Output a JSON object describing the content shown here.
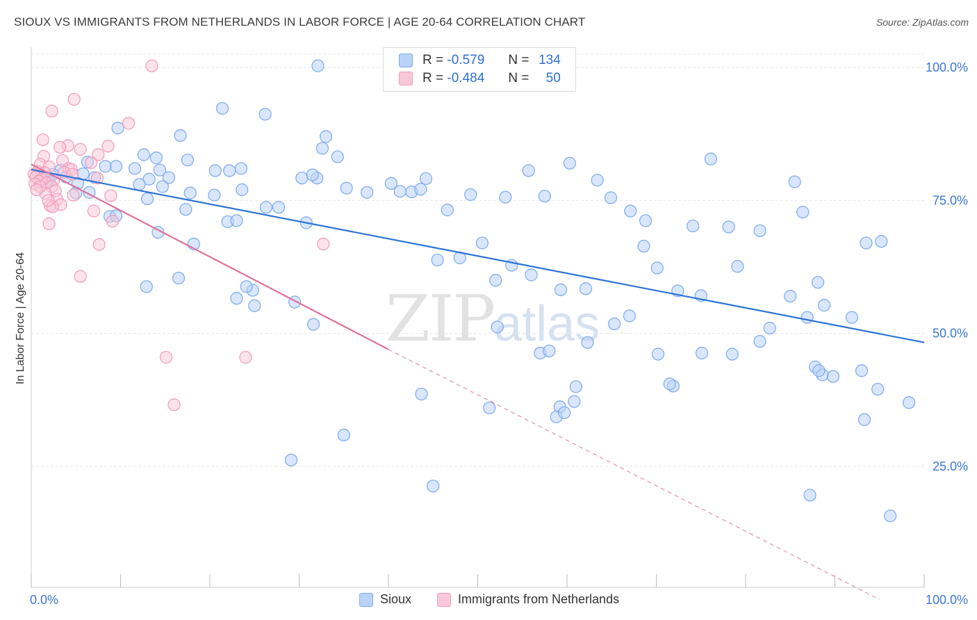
{
  "title": "SIOUX VS IMMIGRANTS FROM NETHERLANDS IN LABOR FORCE | AGE 20-64 CORRELATION CHART",
  "source": "Source: ZipAtlas.com",
  "legend_top": {
    "rows": [
      {
        "r_label": "R =",
        "r_value": "-0.579",
        "n_label": "N =",
        "n_value": "134"
      },
      {
        "r_label": "R =",
        "r_value": "-0.484",
        "n_label": "N =",
        "n_value": "50"
      }
    ]
  },
  "watermark": {
    "zip": "ZIP",
    "atlas": "atlas"
  },
  "colors": {
    "sioux": "#7aaaf0",
    "sioux_fill": "#b9d2f7",
    "sioux_line": "#2c72d8",
    "neth": "#f29ab8",
    "neth_fill": "#f9c8d8",
    "neth_line": "#e0709a",
    "axis_label": "#3b78d0",
    "grid": "#e6e6e6"
  },
  "chart_data": {
    "type": "scatter",
    "title": "SIOUX VS IMMIGRANTS FROM NETHERLANDS IN LABOR FORCE | AGE 20-64 CORRELATION CHART",
    "xlabel": "",
    "ylabel": "In Labor Force | Age 20-64",
    "xlim": [
      0,
      100
    ],
    "ylim": [
      0,
      105
    ],
    "x_tick_labels": [
      "0.0%",
      "100.0%"
    ],
    "y_ticks": [
      25,
      50,
      75,
      100
    ],
    "y_tick_labels": [
      "25.0%",
      "50.0%",
      "75.0%",
      "100.0%"
    ],
    "grid": true,
    "legend": [
      "Sioux",
      "Immigrants from Netherlands"
    ],
    "series": [
      {
        "name": "Sioux",
        "r": -0.579,
        "n": 134,
        "trend": {
          "x0": 0,
          "y0": 80.8,
          "x1": 100,
          "y1": 48.3
        },
        "points": [
          [
            32.1,
            100.3
          ],
          [
            21.4,
            92.3
          ],
          [
            26.2,
            91.2
          ],
          [
            9.7,
            88.6
          ],
          [
            16.7,
            87.2
          ],
          [
            33.0,
            87.0
          ],
          [
            32.6,
            84.8
          ],
          [
            12.6,
            83.6
          ],
          [
            14.0,
            83.0
          ],
          [
            34.3,
            83.2
          ],
          [
            17.5,
            82.6
          ],
          [
            6.3,
            82.2
          ],
          [
            8.3,
            81.4
          ],
          [
            9.5,
            81.4
          ],
          [
            11.6,
            81.0
          ],
          [
            14.4,
            80.7
          ],
          [
            20.6,
            80.6
          ],
          [
            22.2,
            80.6
          ],
          [
            23.5,
            81.0
          ],
          [
            3.3,
            80.7
          ],
          [
            5.8,
            80.0
          ],
          [
            2.4,
            79.9
          ],
          [
            1.1,
            79.6
          ],
          [
            3.9,
            79.4
          ],
          [
            7.1,
            79.3
          ],
          [
            13.2,
            79.0
          ],
          [
            15.4,
            79.3
          ],
          [
            30.3,
            79.2
          ],
          [
            32.0,
            79.2
          ],
          [
            31.5,
            79.8
          ],
          [
            44.2,
            79.1
          ],
          [
            40.3,
            78.2
          ],
          [
            5.2,
            78.2
          ],
          [
            2.0,
            78.5
          ],
          [
            1.7,
            78.3
          ],
          [
            0.9,
            78.5
          ],
          [
            12.1,
            78.0
          ],
          [
            14.7,
            77.6
          ],
          [
            17.8,
            76.4
          ],
          [
            23.6,
            77.0
          ],
          [
            35.3,
            77.3
          ],
          [
            37.6,
            76.5
          ],
          [
            41.3,
            76.7
          ],
          [
            42.6,
            76.6
          ],
          [
            43.6,
            77.1
          ],
          [
            49.2,
            76.1
          ],
          [
            53.1,
            75.6
          ],
          [
            55.7,
            80.6
          ],
          [
            60.3,
            82.0
          ],
          [
            63.4,
            78.8
          ],
          [
            20.5,
            76.0
          ],
          [
            13.0,
            75.3
          ],
          [
            6.5,
            76.5
          ],
          [
            5.0,
            76.4
          ],
          [
            17.3,
            73.3
          ],
          [
            26.3,
            73.7
          ],
          [
            27.7,
            73.7
          ],
          [
            22.0,
            71.0
          ],
          [
            23.0,
            71.2
          ],
          [
            8.8,
            72.0
          ],
          [
            14.2,
            69.0
          ],
          [
            9.5,
            72.1
          ],
          [
            18.2,
            66.8
          ],
          [
            30.8,
            70.8
          ],
          [
            46.6,
            73.2
          ],
          [
            57.5,
            75.8
          ],
          [
            64.9,
            75.5
          ],
          [
            67.1,
            73.0
          ],
          [
            68.8,
            71.2
          ],
          [
            74.1,
            70.2
          ],
          [
            78.1,
            70.0
          ],
          [
            81.6,
            69.3
          ],
          [
            85.5,
            78.5
          ],
          [
            86.4,
            72.8
          ],
          [
            76.1,
            82.8
          ],
          [
            50.5,
            67.0
          ],
          [
            48.0,
            64.2
          ],
          [
            53.8,
            62.8
          ],
          [
            52.0,
            60.0
          ],
          [
            56.0,
            61.0
          ],
          [
            59.3,
            58.2
          ],
          [
            62.1,
            58.4
          ],
          [
            68.6,
            66.4
          ],
          [
            70.1,
            62.3
          ],
          [
            79.1,
            62.6
          ],
          [
            75.0,
            57.1
          ],
          [
            85.0,
            57.0
          ],
          [
            88.1,
            59.6
          ],
          [
            93.5,
            67.0
          ],
          [
            95.2,
            67.3
          ],
          [
            72.4,
            58.0
          ],
          [
            91.9,
            53.0
          ],
          [
            86.9,
            53.0
          ],
          [
            88.8,
            55.3
          ],
          [
            82.7,
            51.0
          ],
          [
            81.6,
            48.5
          ],
          [
            62.3,
            48.3
          ],
          [
            52.2,
            51.2
          ],
          [
            57.0,
            46.3
          ],
          [
            58.0,
            46.7
          ],
          [
            65.3,
            51.8
          ],
          [
            67.0,
            53.3
          ],
          [
            70.2,
            46.1
          ],
          [
            75.1,
            46.3
          ],
          [
            78.5,
            46.1
          ],
          [
            87.8,
            43.7
          ],
          [
            88.6,
            42.2
          ],
          [
            88.2,
            43.0
          ],
          [
            93.0,
            43.0
          ],
          [
            94.8,
            39.5
          ],
          [
            89.8,
            41.9
          ],
          [
            43.7,
            38.6
          ],
          [
            71.9,
            40.1
          ],
          [
            71.5,
            40.5
          ],
          [
            61.0,
            40.0
          ],
          [
            60.8,
            37.2
          ],
          [
            59.2,
            36.2
          ],
          [
            51.3,
            36.0
          ],
          [
            12.9,
            58.8
          ],
          [
            16.5,
            60.4
          ],
          [
            24.8,
            58.1
          ],
          [
            24.1,
            58.8
          ],
          [
            23.0,
            56.6
          ],
          [
            29.5,
            55.9
          ],
          [
            25.0,
            55.2
          ],
          [
            58.8,
            34.3
          ],
          [
            59.7,
            35.1
          ],
          [
            35.0,
            30.9
          ],
          [
            45.0,
            21.3
          ],
          [
            29.1,
            26.2
          ],
          [
            31.6,
            51.7
          ],
          [
            93.3,
            33.8
          ],
          [
            87.2,
            19.6
          ],
          [
            98.3,
            37.0
          ],
          [
            96.2,
            15.7
          ],
          [
            45.5,
            63.8
          ]
        ]
      },
      {
        "name": "Immigrants from Netherlands",
        "r": -0.484,
        "n": 50,
        "trend": {
          "x0": 0,
          "y0": 81.8,
          "x1": 40,
          "y1": 47.0,
          "dashed_to_x": 95,
          "dashed_to_y": 0
        },
        "points": [
          [
            13.5,
            100.3
          ],
          [
            4.8,
            94.0
          ],
          [
            2.3,
            91.8
          ],
          [
            10.9,
            89.5
          ],
          [
            1.3,
            86.4
          ],
          [
            4.1,
            85.3
          ],
          [
            8.6,
            85.2
          ],
          [
            5.5,
            84.6
          ],
          [
            3.2,
            85.0
          ],
          [
            7.5,
            83.6
          ],
          [
            1.4,
            83.3
          ],
          [
            3.5,
            82.5
          ],
          [
            6.7,
            82.1
          ],
          [
            1.0,
            81.8
          ],
          [
            2.0,
            81.3
          ],
          [
            4.2,
            81.0
          ],
          [
            4.5,
            80.8
          ],
          [
            0.7,
            80.4
          ],
          [
            1.5,
            80.2
          ],
          [
            3.7,
            80.3
          ],
          [
            4.6,
            79.9
          ],
          [
            0.3,
            79.9
          ],
          [
            0.5,
            79.4
          ],
          [
            1.1,
            79.0
          ],
          [
            0.9,
            78.6
          ],
          [
            2.5,
            78.8
          ],
          [
            1.7,
            78.3
          ],
          [
            0.4,
            78.1
          ],
          [
            7.4,
            79.2
          ],
          [
            2.3,
            77.6
          ],
          [
            2.7,
            76.8
          ],
          [
            1.6,
            76.3
          ],
          [
            4.7,
            76.0
          ],
          [
            8.9,
            75.9
          ],
          [
            2.9,
            75.2
          ],
          [
            2.1,
            74.0
          ],
          [
            7.0,
            73.0
          ],
          [
            9.1,
            71.1
          ],
          [
            2.0,
            70.6
          ],
          [
            7.6,
            66.7
          ],
          [
            32.7,
            66.8
          ],
          [
            5.5,
            60.7
          ],
          [
            15.1,
            45.5
          ],
          [
            24.0,
            45.5
          ],
          [
            16.0,
            36.6
          ],
          [
            1.0,
            77.6
          ],
          [
            0.6,
            77.0
          ],
          [
            3.3,
            74.2
          ],
          [
            2.4,
            73.8
          ],
          [
            1.9,
            75.0
          ]
        ]
      }
    ]
  },
  "legend_bottom": {
    "items": [
      {
        "label": "Sioux"
      },
      {
        "label": "Immigrants from Netherlands"
      }
    ]
  }
}
